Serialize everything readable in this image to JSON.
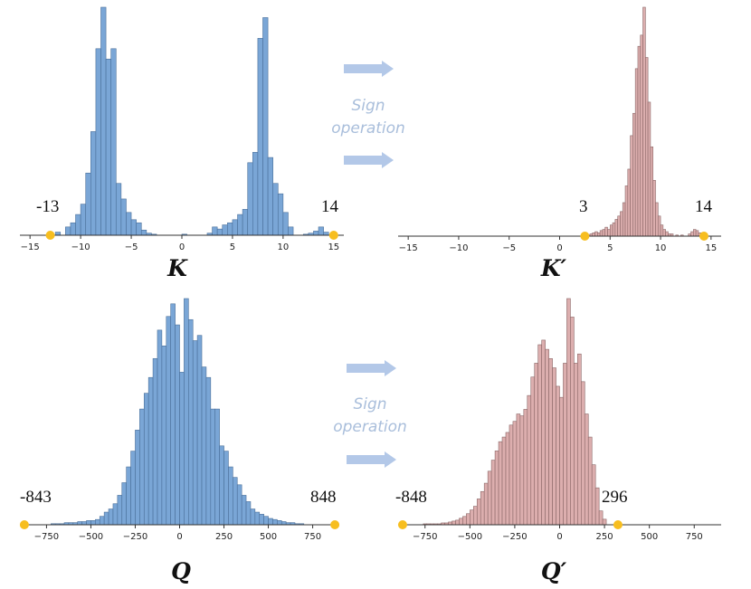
{
  "colors": {
    "blue_bar": "#7aa6d6",
    "blue_edge": "#4a6f99",
    "pink_bar": "#dcaeae",
    "pink_edge": "#8a6666",
    "marker": "#f7be1f",
    "arrow": "#b3c8e8",
    "axis": "#333333"
  },
  "arrows_top": {
    "label_line1": "Sign",
    "label_line2": "operation"
  },
  "arrows_bottom": {
    "label_line1": "Sign",
    "label_line2": "operation"
  },
  "chart_data": [
    {
      "id": "K",
      "type": "bar",
      "title": "K",
      "xlabel": "",
      "ylabel": "",
      "xlim": [
        -16,
        16
      ],
      "ticks": [
        -15,
        -10,
        -5,
        0,
        5,
        10,
        15
      ],
      "tick_labels": [
        "−15",
        "−10",
        "−5",
        "0",
        "5",
        "10",
        "15"
      ],
      "annotations": {
        "min_label": "-13",
        "max_label": "14"
      },
      "markers": [
        -13,
        15
      ],
      "bin_width": 0.5,
      "bins": [
        {
          "x": -12.5,
          "y": 3
        },
        {
          "x": -11.5,
          "y": 8
        },
        {
          "x": -11,
          "y": 12
        },
        {
          "x": -10.5,
          "y": 20
        },
        {
          "x": -10,
          "y": 30
        },
        {
          "x": -9.5,
          "y": 60
        },
        {
          "x": -9,
          "y": 100
        },
        {
          "x": -8.5,
          "y": 180
        },
        {
          "x": -8,
          "y": 220
        },
        {
          "x": -7.5,
          "y": 170
        },
        {
          "x": -7,
          "y": 180
        },
        {
          "x": -6.5,
          "y": 50
        },
        {
          "x": -6,
          "y": 35
        },
        {
          "x": -5.5,
          "y": 22
        },
        {
          "x": -5,
          "y": 15
        },
        {
          "x": -4.5,
          "y": 12
        },
        {
          "x": -4,
          "y": 5
        },
        {
          "x": -3.5,
          "y": 2
        },
        {
          "x": -3,
          "y": 1
        },
        {
          "x": 0,
          "y": 1
        },
        {
          "x": 2.5,
          "y": 2
        },
        {
          "x": 3,
          "y": 8
        },
        {
          "x": 3.5,
          "y": 6
        },
        {
          "x": 4,
          "y": 10
        },
        {
          "x": 4.5,
          "y": 12
        },
        {
          "x": 5,
          "y": 15
        },
        {
          "x": 5.5,
          "y": 20
        },
        {
          "x": 6,
          "y": 25
        },
        {
          "x": 6.5,
          "y": 70
        },
        {
          "x": 7,
          "y": 80
        },
        {
          "x": 7.5,
          "y": 190
        },
        {
          "x": 8,
          "y": 210
        },
        {
          "x": 8.5,
          "y": 75
        },
        {
          "x": 9,
          "y": 50
        },
        {
          "x": 9.5,
          "y": 40
        },
        {
          "x": 10,
          "y": 22
        },
        {
          "x": 10.5,
          "y": 8
        },
        {
          "x": 12,
          "y": 1
        },
        {
          "x": 12.5,
          "y": 2
        },
        {
          "x": 13,
          "y": 4
        },
        {
          "x": 13.5,
          "y": 8
        },
        {
          "x": 14,
          "y": 3
        }
      ]
    },
    {
      "id": "Kp",
      "type": "bar",
      "title": "K′",
      "xlabel": "",
      "ylabel": "",
      "xlim": [
        -16,
        16
      ],
      "ticks": [
        -15,
        -10,
        -5,
        0,
        5,
        10,
        15
      ],
      "tick_labels": [
        "−15",
        "−10",
        "−5",
        "0",
        "5",
        "10",
        "15"
      ],
      "annotations": {
        "min_label": "3",
        "max_label": "14"
      },
      "markers": [
        2.5,
        14.3
      ],
      "bin_width": 0.25,
      "bins": [
        {
          "x": 2.5,
          "y": 1
        },
        {
          "x": 2.75,
          "y": 1
        },
        {
          "x": 3,
          "y": 2
        },
        {
          "x": 3.25,
          "y": 3
        },
        {
          "x": 3.5,
          "y": 4
        },
        {
          "x": 3.75,
          "y": 3
        },
        {
          "x": 4,
          "y": 5
        },
        {
          "x": 4.25,
          "y": 6
        },
        {
          "x": 4.5,
          "y": 8
        },
        {
          "x": 4.75,
          "y": 6
        },
        {
          "x": 5,
          "y": 10
        },
        {
          "x": 5.25,
          "y": 12
        },
        {
          "x": 5.5,
          "y": 15
        },
        {
          "x": 5.75,
          "y": 18
        },
        {
          "x": 6,
          "y": 22
        },
        {
          "x": 6.25,
          "y": 30
        },
        {
          "x": 6.5,
          "y": 45
        },
        {
          "x": 6.75,
          "y": 60
        },
        {
          "x": 7,
          "y": 90
        },
        {
          "x": 7.25,
          "y": 110
        },
        {
          "x": 7.5,
          "y": 150
        },
        {
          "x": 7.75,
          "y": 170
        },
        {
          "x": 8,
          "y": 180
        },
        {
          "x": 8.25,
          "y": 205
        },
        {
          "x": 8.5,
          "y": 160
        },
        {
          "x": 8.75,
          "y": 120
        },
        {
          "x": 9,
          "y": 80
        },
        {
          "x": 9.25,
          "y": 50
        },
        {
          "x": 9.5,
          "y": 30
        },
        {
          "x": 9.75,
          "y": 18
        },
        {
          "x": 10,
          "y": 10
        },
        {
          "x": 10.25,
          "y": 6
        },
        {
          "x": 10.5,
          "y": 4
        },
        {
          "x": 10.75,
          "y": 2
        },
        {
          "x": 11,
          "y": 2
        },
        {
          "x": 11.5,
          "y": 1
        },
        {
          "x": 12,
          "y": 1
        },
        {
          "x": 12.75,
          "y": 2
        },
        {
          "x": 13,
          "y": 4
        },
        {
          "x": 13.25,
          "y": 6
        },
        {
          "x": 13.5,
          "y": 5
        },
        {
          "x": 13.75,
          "y": 3
        },
        {
          "x": 14,
          "y": 1
        }
      ]
    },
    {
      "id": "Q",
      "type": "bar",
      "title": "Q",
      "xlabel": "",
      "ylabel": "",
      "xlim": [
        -900,
        900
      ],
      "ticks": [
        -750,
        -500,
        -250,
        0,
        250,
        500,
        750
      ],
      "tick_labels": [
        "−750",
        "−500",
        "−250",
        "0",
        "250",
        "500",
        "750"
      ],
      "annotations": {
        "min_label": "-843",
        "max_label": "848"
      },
      "markers": [
        -875,
        875
      ],
      "bin_width": 25,
      "bins": [
        {
          "x": -725,
          "y": 1
        },
        {
          "x": -700,
          "y": 1
        },
        {
          "x": -675,
          "y": 1
        },
        {
          "x": -650,
          "y": 2
        },
        {
          "x": -625,
          "y": 2
        },
        {
          "x": -600,
          "y": 2
        },
        {
          "x": -575,
          "y": 3
        },
        {
          "x": -550,
          "y": 3
        },
        {
          "x": -525,
          "y": 4
        },
        {
          "x": -500,
          "y": 4
        },
        {
          "x": -475,
          "y": 5
        },
        {
          "x": -450,
          "y": 8
        },
        {
          "x": -425,
          "y": 12
        },
        {
          "x": -400,
          "y": 15
        },
        {
          "x": -375,
          "y": 20
        },
        {
          "x": -350,
          "y": 28
        },
        {
          "x": -325,
          "y": 40
        },
        {
          "x": -300,
          "y": 55
        },
        {
          "x": -275,
          "y": 70
        },
        {
          "x": -250,
          "y": 90
        },
        {
          "x": -225,
          "y": 110
        },
        {
          "x": -200,
          "y": 125
        },
        {
          "x": -175,
          "y": 140
        },
        {
          "x": -150,
          "y": 158
        },
        {
          "x": -125,
          "y": 185
        },
        {
          "x": -100,
          "y": 170
        },
        {
          "x": -75,
          "y": 198
        },
        {
          "x": -50,
          "y": 210
        },
        {
          "x": -25,
          "y": 190
        },
        {
          "x": 0,
          "y": 145
        },
        {
          "x": 25,
          "y": 215
        },
        {
          "x": 50,
          "y": 195
        },
        {
          "x": 75,
          "y": 175
        },
        {
          "x": 100,
          "y": 180
        },
        {
          "x": 125,
          "y": 150
        },
        {
          "x": 150,
          "y": 140
        },
        {
          "x": 175,
          "y": 110
        },
        {
          "x": 200,
          "y": 110
        },
        {
          "x": 225,
          "y": 75
        },
        {
          "x": 250,
          "y": 70
        },
        {
          "x": 275,
          "y": 55
        },
        {
          "x": 300,
          "y": 45
        },
        {
          "x": 325,
          "y": 38
        },
        {
          "x": 350,
          "y": 28
        },
        {
          "x": 375,
          "y": 22
        },
        {
          "x": 400,
          "y": 15
        },
        {
          "x": 425,
          "y": 12
        },
        {
          "x": 450,
          "y": 10
        },
        {
          "x": 475,
          "y": 8
        },
        {
          "x": 500,
          "y": 6
        },
        {
          "x": 525,
          "y": 5
        },
        {
          "x": 550,
          "y": 4
        },
        {
          "x": 575,
          "y": 3
        },
        {
          "x": 600,
          "y": 2
        },
        {
          "x": 625,
          "y": 2
        },
        {
          "x": 650,
          "y": 1
        },
        {
          "x": 675,
          "y": 1
        }
      ]
    },
    {
      "id": "Qp",
      "type": "bar",
      "title": "Q′",
      "xlabel": "",
      "ylabel": "",
      "xlim": [
        -900,
        900
      ],
      "ticks": [
        -750,
        -500,
        -250,
        0,
        250,
        500,
        750
      ],
      "tick_labels": [
        "−750",
        "−500",
        "−250",
        "0",
        "250",
        "500",
        "750"
      ],
      "annotations": {
        "min_label": "-848",
        "max_label": "296"
      },
      "markers": [
        -875,
        325
      ],
      "bin_width": 20,
      "bins": [
        {
          "x": -760,
          "y": 1
        },
        {
          "x": -740,
          "y": 1
        },
        {
          "x": -720,
          "y": 1
        },
        {
          "x": -700,
          "y": 1
        },
        {
          "x": -680,
          "y": 1
        },
        {
          "x": -660,
          "y": 2
        },
        {
          "x": -640,
          "y": 2
        },
        {
          "x": -620,
          "y": 3
        },
        {
          "x": -600,
          "y": 4
        },
        {
          "x": -580,
          "y": 5
        },
        {
          "x": -560,
          "y": 7
        },
        {
          "x": -540,
          "y": 9
        },
        {
          "x": -520,
          "y": 12
        },
        {
          "x": -500,
          "y": 16
        },
        {
          "x": -480,
          "y": 20
        },
        {
          "x": -460,
          "y": 28
        },
        {
          "x": -440,
          "y": 36
        },
        {
          "x": -420,
          "y": 45
        },
        {
          "x": -400,
          "y": 58
        },
        {
          "x": -380,
          "y": 70
        },
        {
          "x": -360,
          "y": 80
        },
        {
          "x": -340,
          "y": 90
        },
        {
          "x": -320,
          "y": 95
        },
        {
          "x": -300,
          "y": 100
        },
        {
          "x": -280,
          "y": 108
        },
        {
          "x": -260,
          "y": 112
        },
        {
          "x": -240,
          "y": 120
        },
        {
          "x": -220,
          "y": 118
        },
        {
          "x": -200,
          "y": 125
        },
        {
          "x": -180,
          "y": 140
        },
        {
          "x": -160,
          "y": 160
        },
        {
          "x": -140,
          "y": 175
        },
        {
          "x": -120,
          "y": 195
        },
        {
          "x": -100,
          "y": 200
        },
        {
          "x": -80,
          "y": 190
        },
        {
          "x": -60,
          "y": 180
        },
        {
          "x": -40,
          "y": 170
        },
        {
          "x": -20,
          "y": 150
        },
        {
          "x": 0,
          "y": 138
        },
        {
          "x": 20,
          "y": 175
        },
        {
          "x": 40,
          "y": 245
        },
        {
          "x": 60,
          "y": 225
        },
        {
          "x": 80,
          "y": 175
        },
        {
          "x": 100,
          "y": 185
        },
        {
          "x": 120,
          "y": 155
        },
        {
          "x": 140,
          "y": 120
        },
        {
          "x": 160,
          "y": 95
        },
        {
          "x": 180,
          "y": 65
        },
        {
          "x": 200,
          "y": 40
        },
        {
          "x": 220,
          "y": 15
        },
        {
          "x": 240,
          "y": 6
        }
      ]
    }
  ]
}
